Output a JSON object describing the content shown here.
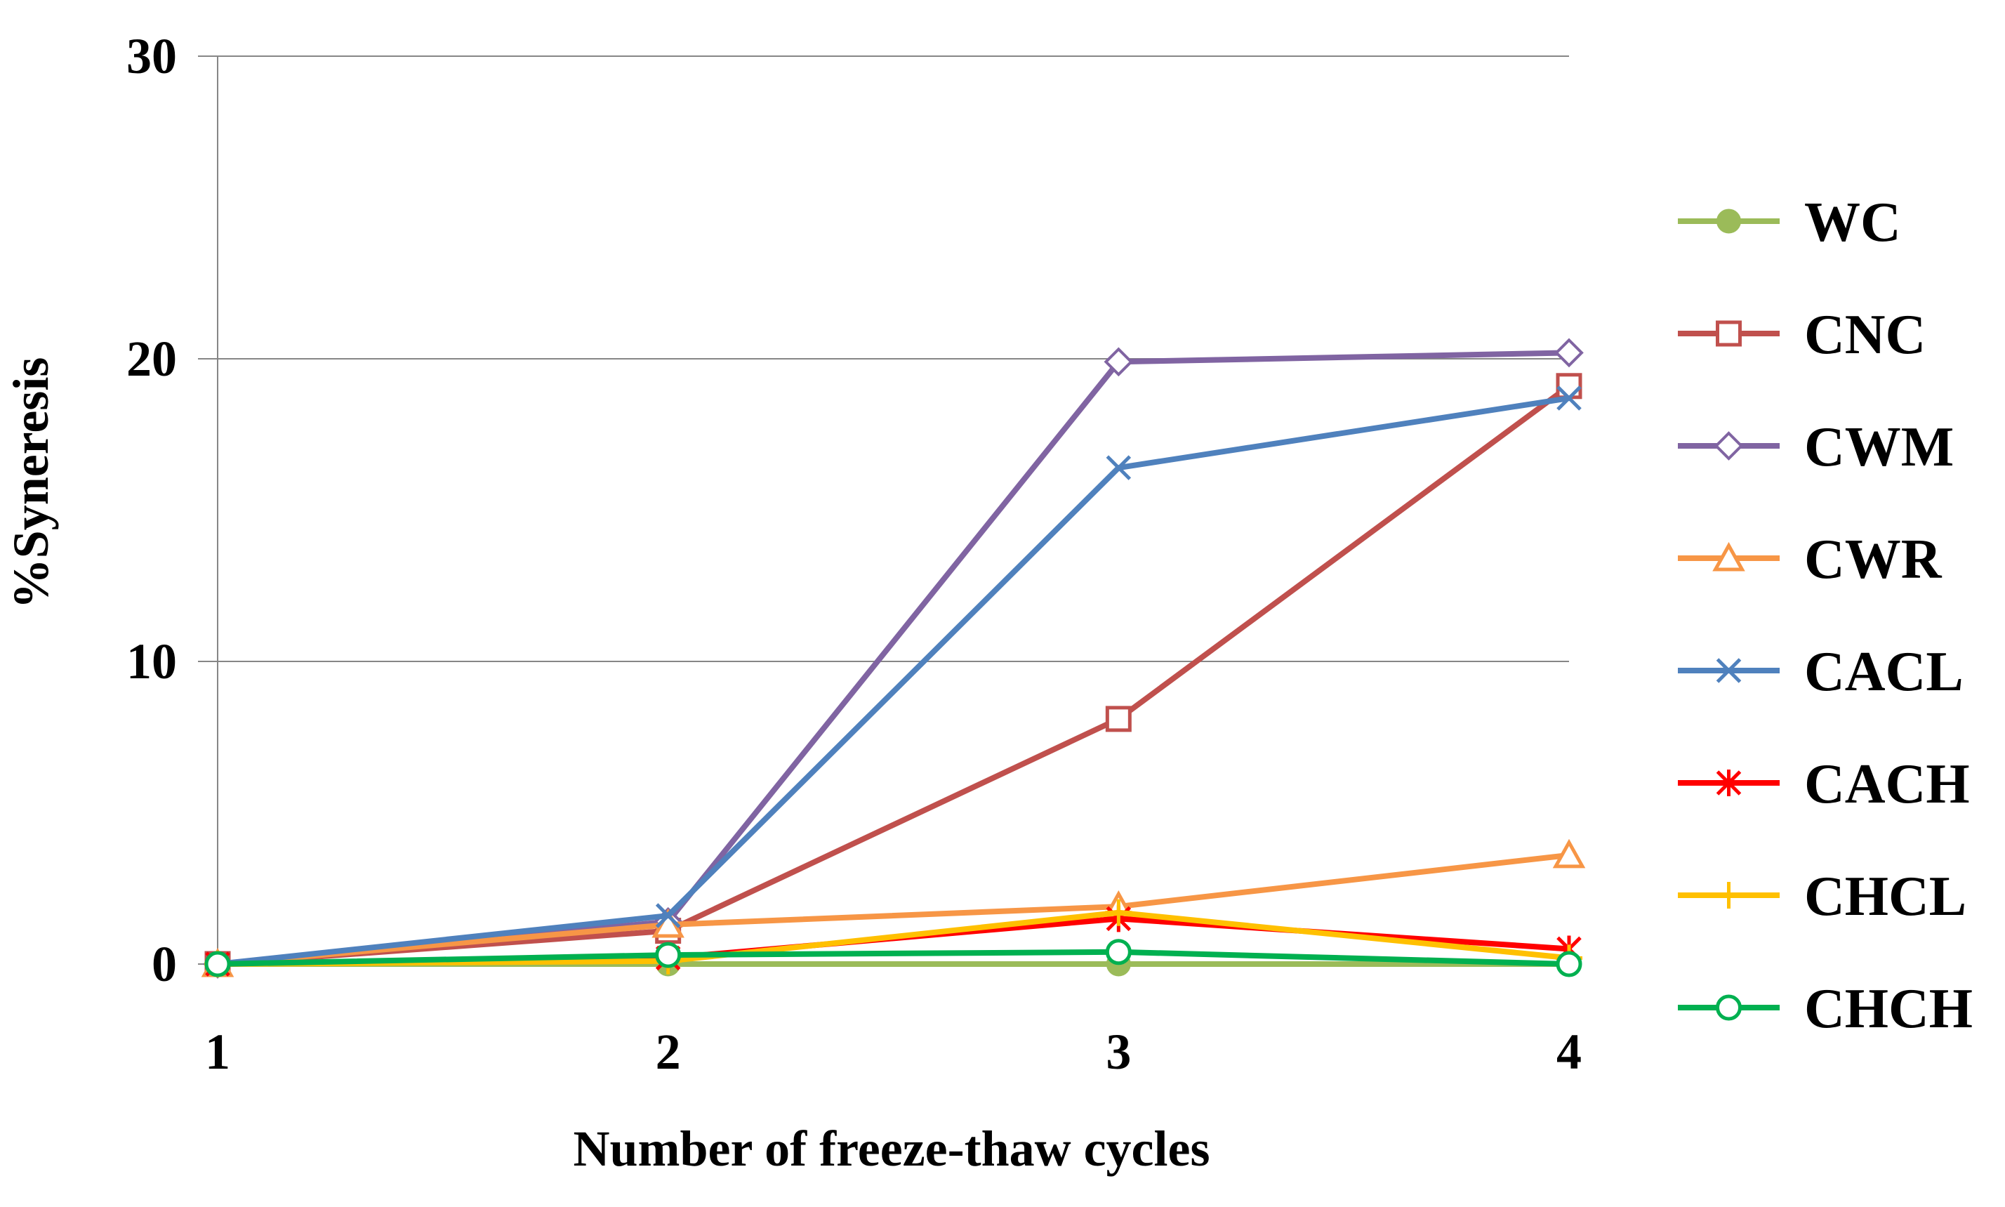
{
  "chart_data": {
    "type": "line",
    "title": "",
    "xlabel": "Number of freeze-thaw cycles",
    "ylabel": "%Syneresis",
    "x": [
      1,
      2,
      3,
      4
    ],
    "x_tick_labels": [
      "1",
      "2",
      "3",
      "4"
    ],
    "ylim": [
      0,
      30
    ],
    "y_ticks": [
      0,
      10,
      20,
      30
    ],
    "y_tick_labels": [
      "0",
      "10",
      "20",
      "30"
    ],
    "grid": "horizontal",
    "legend_position": "right",
    "series": [
      {
        "name": "WC",
        "color": "#9BBB59",
        "marker": "filled-circle",
        "values": [
          0,
          0,
          0,
          0
        ]
      },
      {
        "name": "CNC",
        "color": "#C0504D",
        "marker": "square",
        "values": [
          0,
          1.1,
          8.1,
          19.1
        ]
      },
      {
        "name": "CWM",
        "color": "#8064A2",
        "marker": "diamond",
        "values": [
          0,
          1.4,
          19.9,
          20.2
        ]
      },
      {
        "name": "CWR",
        "color": "#F79646",
        "marker": "triangle",
        "values": [
          0,
          1.3,
          1.9,
          3.6
        ]
      },
      {
        "name": "CACL",
        "color": "#4F81BD",
        "marker": "x",
        "values": [
          0,
          1.6,
          16.4,
          18.7
        ]
      },
      {
        "name": "CACH",
        "color": "#FF0000",
        "marker": "star",
        "values": [
          0,
          0.2,
          1.5,
          0.5
        ]
      },
      {
        "name": "CHCL",
        "color": "#FFC000",
        "marker": "plus",
        "values": [
          0,
          0.1,
          1.7,
          0.2
        ]
      },
      {
        "name": "CHCH",
        "color": "#00B050",
        "marker": "open-circle",
        "values": [
          0,
          0.3,
          0.4,
          0.0
        ]
      }
    ]
  }
}
